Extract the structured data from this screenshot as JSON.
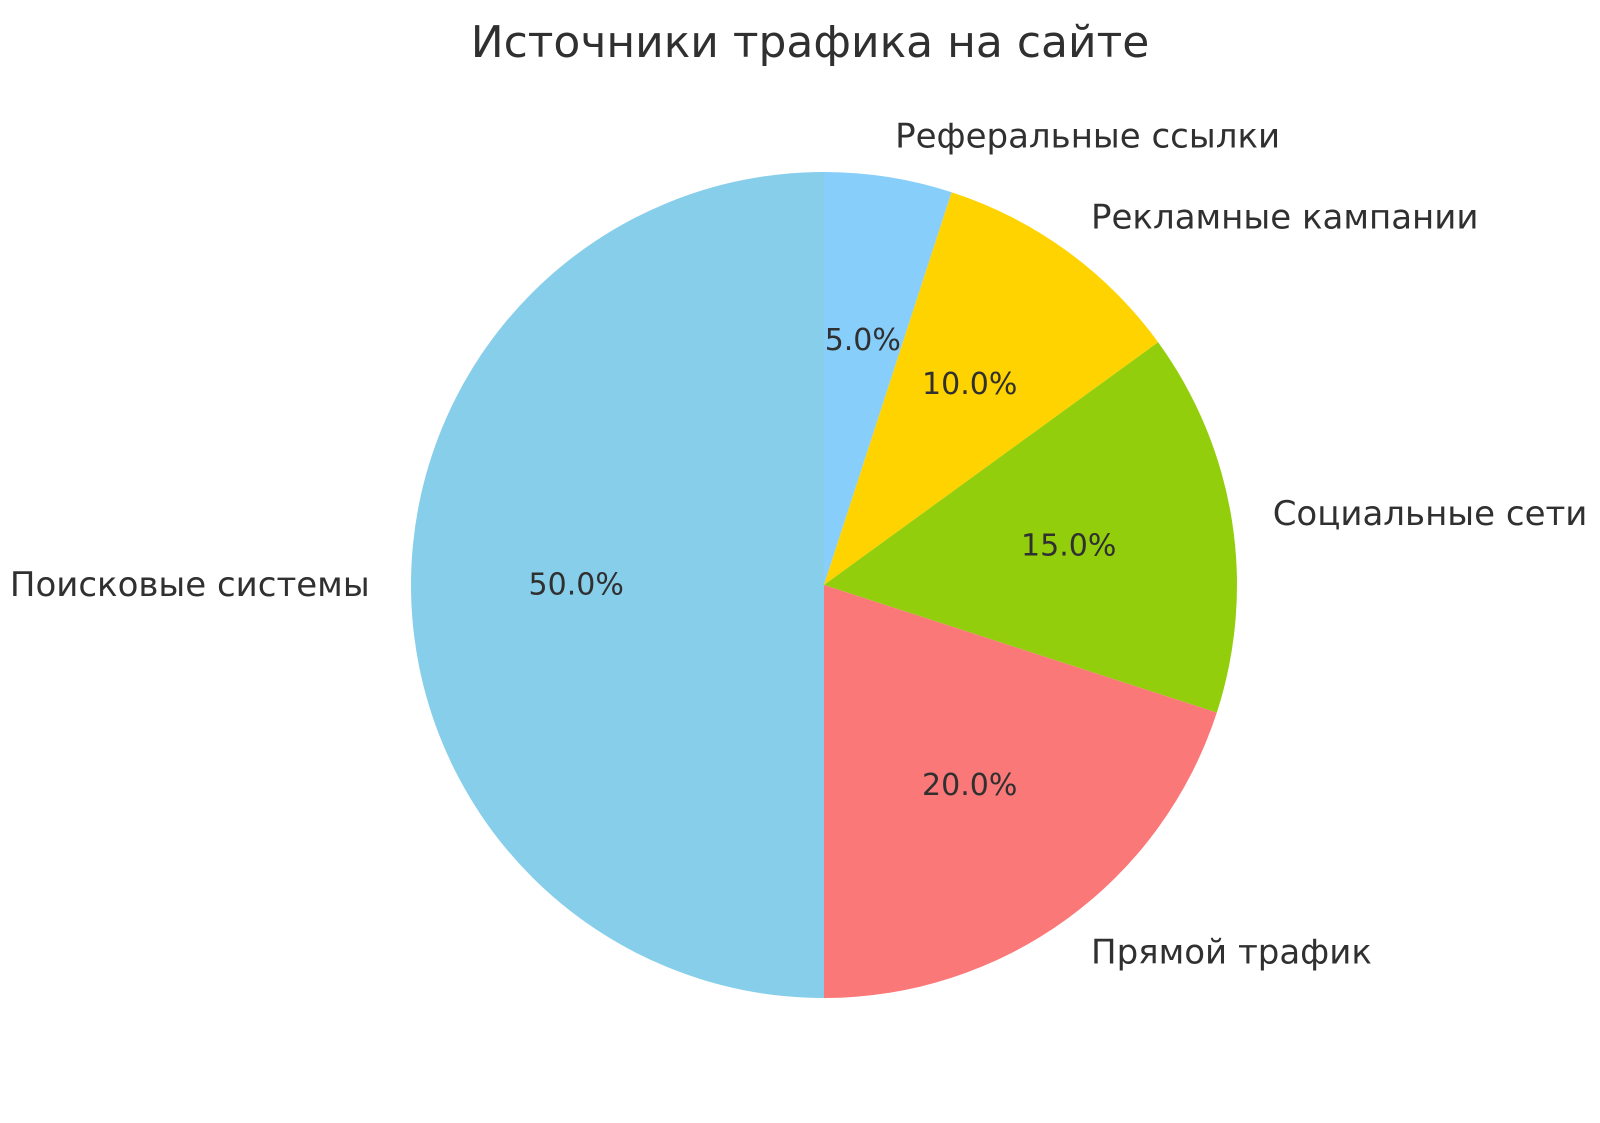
{
  "chart_data": {
    "type": "pie",
    "title": "Источники трафика на сайте",
    "slices": [
      {
        "label": "Реферальные ссылки",
        "value": 5.0,
        "pct_label": "5.0%",
        "color": "#87CEFA"
      },
      {
        "label": "Рекламные кампании",
        "value": 10.0,
        "pct_label": "10.0%",
        "color": "#FFD300"
      },
      {
        "label": "Социальные сети",
        "value": 15.0,
        "pct_label": "15.0%",
        "color": "#93CE0C"
      },
      {
        "label": "Прямой трафик",
        "value": 20.0,
        "pct_label": "20.0%",
        "color": "#FA7878"
      },
      {
        "label": "Поисковые системы",
        "value": 50.0,
        "pct_label": "50.0%",
        "color": "#87CEEB"
      }
    ],
    "start_angle_deg": 90,
    "direction": "clockwise",
    "legend": "none",
    "label_distance": 1.1,
    "pct_distance": 0.6,
    "text_color": "#303030",
    "background_color": "#ffffff"
  }
}
